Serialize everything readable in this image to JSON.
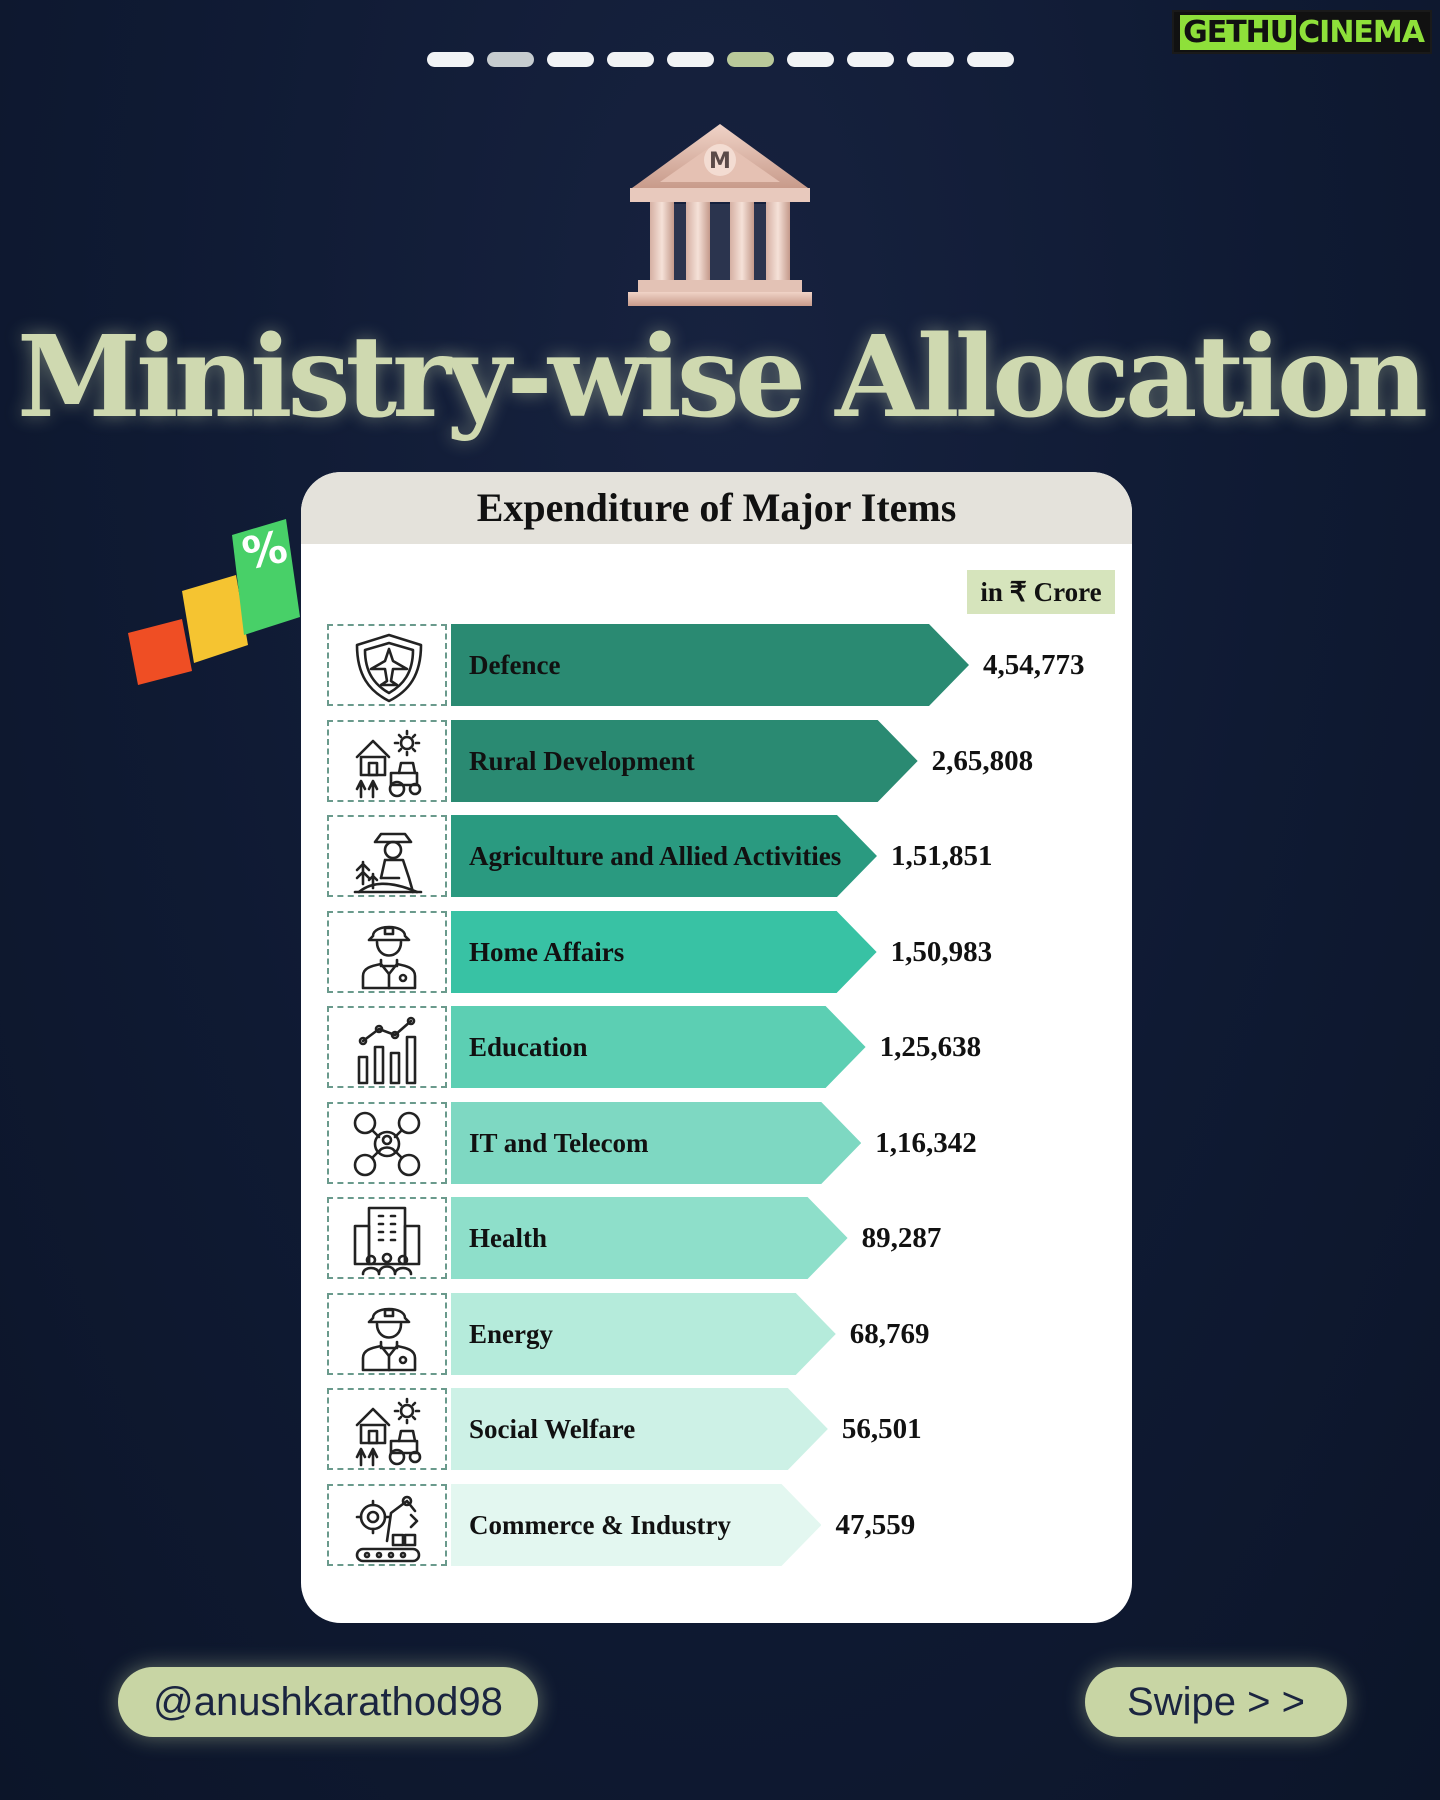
{
  "brand": {
    "part1": "GETHU",
    "part2": "CINEMA"
  },
  "pagination": {
    "count": 10,
    "active_index": 5
  },
  "title": "Ministry-wise Allocation",
  "card": {
    "title": "Expenditure of Major Items",
    "unit_label": "in ₹ Crore"
  },
  "chart_data": {
    "type": "bar",
    "orientation": "horizontal",
    "title": "Expenditure of Major Items",
    "unit": "in ₹ Crore",
    "categories": [
      "Defence",
      "Rural Development",
      "Agriculture and Allied Activities",
      "Home Affairs",
      "Education",
      "IT and Telecom",
      "Health",
      "Energy",
      "Social Welfare",
      "Commerce & Industry"
    ],
    "values": [
      454773,
      265808,
      151851,
      150983,
      125638,
      116342,
      89287,
      68769,
      56501,
      47559
    ],
    "value_labels": [
      "4,54,773",
      "2,65,808",
      "1,51,851",
      "1,50,983",
      "1,25,638",
      "1,16,342",
      "89,287",
      "68,769",
      "56,501",
      "47,559"
    ],
    "icons": [
      "shield-jet-icon",
      "farm-tractor-icon",
      "farmer-icon",
      "police-officer-icon",
      "bar-growth-icon",
      "network-people-icon",
      "hospital-building-icon",
      "police-officer-icon",
      "farm-tractor-icon",
      "factory-robot-arm-icon"
    ],
    "colors": [
      "#2a8a72",
      "#2a8a72",
      "#2a9a80",
      "#38c2a4",
      "#5ccfb3",
      "#7ed8c2",
      "#8edfca",
      "#b5ebdb",
      "#cdf1e6",
      "#e3f7f0"
    ]
  },
  "footer": {
    "handle": "@anushkarathod98",
    "swipe": "Swipe > >"
  }
}
